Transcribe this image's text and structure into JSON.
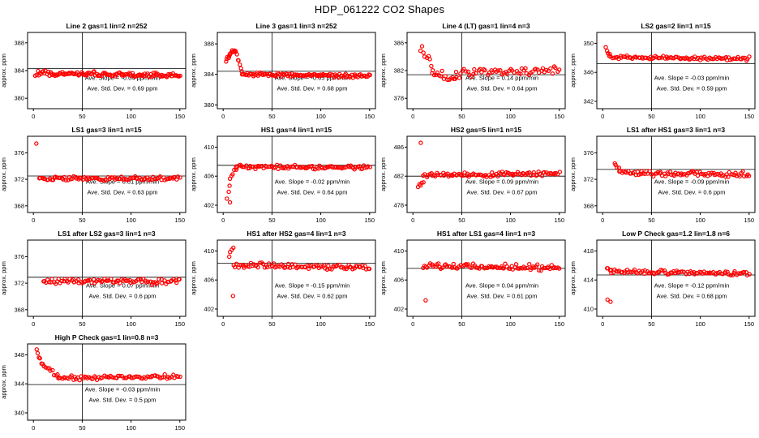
{
  "page": {
    "title": "HDP_061222  CO2 Shapes"
  },
  "colors": {
    "point": "#ff0000",
    "axis": "#000000",
    "text": "#000000",
    "background": "#ffffff"
  },
  "chart_data": [
    {
      "type": "scatter",
      "title": "Line 2 gas=1 lin=2 n=252",
      "ylabel": "approx. ppm",
      "xlim": [
        -6,
        156
      ],
      "xticks": [
        0,
        50,
        100,
        150
      ],
      "ylim": [
        378.5,
        389.5
      ],
      "yticks": [
        380,
        384,
        388
      ],
      "hline": 384.3,
      "vline": 50,
      "seed": 11,
      "segments": [
        {
          "x0": 2,
          "x1": 150,
          "n": 126,
          "y0": 383.6,
          "y1": 383.3,
          "noise": 0.45
        }
      ],
      "outliers": [],
      "slope_text": "Ave. Slope =  -0.04  ppm/min",
      "std_text": "Ave. Std. Dev. =  0.69  ppm"
    },
    {
      "type": "scatter",
      "title": "Line 3 gas=1 lin=3 n=252",
      "ylabel": "approx. ppm",
      "xlim": [
        -6,
        156
      ],
      "xticks": [
        0,
        50,
        100,
        150
      ],
      "ylim": [
        379.5,
        389.5
      ],
      "yticks": [
        380,
        384,
        388
      ],
      "hline": 384.4,
      "vline": 50,
      "seed": 22,
      "segments": [
        {
          "x0": 3,
          "x1": 7,
          "n": 6,
          "y0": 385.8,
          "y1": 386.6,
          "noise": 0.3
        },
        {
          "x0": 7,
          "x1": 13,
          "n": 8,
          "y0": 386.8,
          "y1": 387.2,
          "noise": 0.35
        },
        {
          "x0": 13,
          "x1": 19,
          "n": 7,
          "y0": 386.8,
          "y1": 384.6,
          "noise": 0.3
        },
        {
          "x0": 19,
          "x1": 150,
          "n": 108,
          "y0": 384.0,
          "y1": 383.8,
          "noise": 0.3
        }
      ],
      "outliers": [],
      "slope_text": "Ave. Slope =  -0.05  ppm/min",
      "std_text": "Ave. Std. Dev. =  0.68  ppm"
    },
    {
      "type": "scatter",
      "title": "Line 4 (LT) gas=1 lin=4 n=3",
      "ylabel": "approx. ppm",
      "xlim": [
        -6,
        156
      ],
      "xticks": [
        0,
        50,
        100,
        150
      ],
      "ylim": [
        376.5,
        387.5
      ],
      "yticks": [
        378,
        382,
        386
      ],
      "hline": 381.4,
      "vline": 50,
      "seed": 33,
      "segments": [
        {
          "x0": 8,
          "x1": 20,
          "n": 9,
          "y0": 385.2,
          "y1": 382.5,
          "noise": 0.9
        },
        {
          "x0": 20,
          "x1": 45,
          "n": 16,
          "y0": 381.6,
          "y1": 380.9,
          "noise": 0.8
        },
        {
          "x0": 45,
          "x1": 150,
          "n": 58,
          "y0": 381.6,
          "y1": 382.2,
          "noise": 0.85
        }
      ],
      "outliers": [],
      "slope_text": "Ave. Slope =  0.14  ppm/min",
      "std_text": "Ave. Std. Dev. =  0.64  ppm"
    },
    {
      "type": "scatter",
      "title": "LS2 gas=2 lin=1 n=15",
      "ylabel": "approx. ppm",
      "xlim": [
        -6,
        156
      ],
      "xticks": [
        0,
        50,
        100,
        150
      ],
      "ylim": [
        341,
        351.5
      ],
      "yticks": [
        342,
        346,
        350
      ],
      "hline": 347.2,
      "vline": 50,
      "seed": 44,
      "segments": [
        {
          "x0": 3,
          "x1": 7,
          "n": 4,
          "y0": 349.2,
          "y1": 348.6,
          "noise": 0.35
        },
        {
          "x0": 7,
          "x1": 150,
          "n": 92,
          "y0": 348.1,
          "y1": 347.9,
          "noise": 0.3
        }
      ],
      "outliers": [],
      "slope_text": "Ave. Slope =  -0.03  ppm/min",
      "std_text": "Ave. Std. Dev. =  0.59  ppm"
    },
    {
      "type": "scatter",
      "title": "LS1 gas=3 lin=1 n=15",
      "ylabel": "approx. ppm",
      "xlim": [
        -6,
        156
      ],
      "xticks": [
        0,
        50,
        100,
        150
      ],
      "ylim": [
        367,
        378.5
      ],
      "yticks": [
        368,
        372,
        376
      ],
      "hline": 372.5,
      "vline": 50,
      "seed": 55,
      "segments": [
        {
          "x0": 6,
          "x1": 150,
          "n": 95,
          "y0": 372.1,
          "y1": 372.2,
          "noise": 0.35
        }
      ],
      "outliers": [
        {
          "x": 3,
          "y": 377.4
        }
      ],
      "slope_text": "Ave. Slope =  0.01  ppm/min",
      "std_text": "Ave. Std. Dev. =  0.63  ppm"
    },
    {
      "type": "scatter",
      "title": "HS1 gas=4 lin=1 n=15",
      "ylabel": "approx. ppm",
      "xlim": [
        -6,
        156
      ],
      "xticks": [
        0,
        50,
        100,
        150
      ],
      "ylim": [
        401,
        411.5
      ],
      "yticks": [
        402,
        406,
        410
      ],
      "hline": 407.5,
      "vline": 50,
      "seed": 66,
      "segments": [
        {
          "x0": 4,
          "x1": 7,
          "n": 3,
          "y0": 403.2,
          "y1": 404.6,
          "noise": 0.4
        },
        {
          "x0": 7,
          "x1": 13,
          "n": 5,
          "y0": 405.6,
          "y1": 407.0,
          "noise": 0.4
        },
        {
          "x0": 13,
          "x1": 150,
          "n": 92,
          "y0": 407.3,
          "y1": 407.2,
          "noise": 0.35
        }
      ],
      "outliers": [
        {
          "x": 7,
          "y": 402.4
        }
      ],
      "slope_text": "Ave. Slope =  -0.02  ppm/min",
      "std_text": "Ave. Std. Dev. =  0.64  ppm"
    },
    {
      "type": "scatter",
      "title": "HS2 gas=5 lin=1 n=15",
      "ylabel": "approx. ppm",
      "xlim": [
        -6,
        156
      ],
      "xticks": [
        0,
        50,
        100,
        150
      ],
      "ylim": [
        477,
        487.5
      ],
      "yticks": [
        478,
        482,
        486
      ],
      "hline": 482.0,
      "vline": 50,
      "seed": 77,
      "segments": [
        {
          "x0": 5,
          "x1": 11,
          "n": 5,
          "y0": 480.3,
          "y1": 481.2,
          "noise": 0.5
        },
        {
          "x0": 11,
          "x1": 150,
          "n": 93,
          "y0": 482.1,
          "y1": 482.4,
          "noise": 0.4
        }
      ],
      "outliers": [
        {
          "x": 8,
          "y": 486.6
        }
      ],
      "slope_text": "Ave. Slope =  0.09  ppm/min",
      "std_text": "Ave. Std. Dev. =  0.67  ppm"
    },
    {
      "type": "scatter",
      "title": "LS1 after HS1 gas=3 lin=1 n=3",
      "ylabel": "approx. ppm",
      "xlim": [
        -6,
        156
      ],
      "xticks": [
        0,
        50,
        100,
        150
      ],
      "ylim": [
        367,
        378.5
      ],
      "yticks": [
        368,
        372,
        376
      ],
      "hline": 373.5,
      "vline": 50,
      "seed": 88,
      "segments": [
        {
          "x0": 12,
          "x1": 17,
          "n": 4,
          "y0": 374.6,
          "y1": 373.6,
          "noise": 0.4
        },
        {
          "x0": 17,
          "x1": 150,
          "n": 88,
          "y0": 373.0,
          "y1": 372.7,
          "noise": 0.5
        }
      ],
      "outliers": [],
      "slope_text": "Ave. Slope =  -0.09  ppm/min",
      "std_text": "Ave. Std. Dev. =  0.6  ppm"
    },
    {
      "type": "scatter",
      "title": "LS1 after LS2 gas=3 lin=1 n=3",
      "ylabel": "approx. ppm",
      "xlim": [
        -6,
        156
      ],
      "xticks": [
        0,
        50,
        100,
        150
      ],
      "ylim": [
        367,
        378.5
      ],
      "yticks": [
        368,
        372,
        376
      ],
      "hline": 372.9,
      "vline": 50,
      "seed": 99,
      "segments": [
        {
          "x0": 10,
          "x1": 150,
          "n": 88,
          "y0": 372.3,
          "y1": 372.2,
          "noise": 0.5
        }
      ],
      "outliers": [],
      "slope_text": "Ave. Slope =  0.07  ppm/min",
      "std_text": "Ave. Std. Dev. =  0.6  ppm"
    },
    {
      "type": "scatter",
      "title": "HS1 after HS2 gas=4 lin=1 n=3",
      "ylabel": "approx. ppm",
      "xlim": [
        -6,
        156
      ],
      "xticks": [
        0,
        50,
        100,
        150
      ],
      "ylim": [
        401,
        411.5
      ],
      "yticks": [
        402,
        406,
        410
      ],
      "hline": 408.3,
      "vline": 50,
      "seed": 101,
      "segments": [
        {
          "x0": 6,
          "x1": 10,
          "n": 4,
          "y0": 409.6,
          "y1": 410.6,
          "noise": 0.5
        },
        {
          "x0": 11,
          "x1": 150,
          "n": 90,
          "y0": 408.1,
          "y1": 407.7,
          "noise": 0.45
        }
      ],
      "outliers": [
        {
          "x": 10,
          "y": 403.8
        }
      ],
      "slope_text": "Ave. Slope =  -0.15  ppm/min",
      "std_text": "Ave. Std. Dev. =  0.62  ppm"
    },
    {
      "type": "scatter",
      "title": "HS1 after LS1 gas=4 lin=1 n=3",
      "ylabel": "approx. ppm",
      "xlim": [
        -6,
        156
      ],
      "xticks": [
        0,
        50,
        100,
        150
      ],
      "ylim": [
        401,
        411.5
      ],
      "yticks": [
        402,
        406,
        410
      ],
      "hline": 407.6,
      "vline": 50,
      "seed": 111,
      "segments": [
        {
          "x0": 10,
          "x1": 150,
          "n": 90,
          "y0": 407.9,
          "y1": 407.7,
          "noise": 0.5
        }
      ],
      "outliers": [
        {
          "x": 13,
          "y": 403.2
        }
      ],
      "slope_text": "Ave. Slope =  0.04  ppm/min",
      "std_text": "Ave. Std. Dev. =  0.61  ppm"
    },
    {
      "type": "scatter",
      "title": "Low P Check gas=1.2 lin=1.8 n=6",
      "ylabel": "approx. ppm",
      "xlim": [
        -6,
        156
      ],
      "xticks": [
        0,
        50,
        100,
        150
      ],
      "ylim": [
        409,
        419.5
      ],
      "yticks": [
        410,
        414,
        418
      ],
      "hline": 414.7,
      "vline": 50,
      "seed": 121,
      "segments": [
        {
          "x0": 4,
          "x1": 9,
          "n": 4,
          "y0": 415.6,
          "y1": 415.4,
          "noise": 0.3
        },
        {
          "x0": 9,
          "x1": 150,
          "n": 90,
          "y0": 415.2,
          "y1": 414.9,
          "noise": 0.35
        }
      ],
      "outliers": [
        {
          "x": 5,
          "y": 411.3
        },
        {
          "x": 8,
          "y": 411.0
        }
      ],
      "slope_text": "Ave. Slope =  -0.12  ppm/min",
      "std_text": "Ave. Std. Dev. =  0.68  ppm"
    },
    {
      "type": "scatter",
      "title": "High P Check gas=1 lin=0.8 n=3",
      "ylabel": "approx. ppm",
      "xlim": [
        -6,
        156
      ],
      "xticks": [
        0,
        50,
        100,
        150
      ],
      "ylim": [
        339,
        349.5
      ],
      "yticks": [
        340,
        344,
        348
      ],
      "hline": 343.9,
      "vline": 50,
      "seed": 131,
      "segments": [
        {
          "x0": 3,
          "x1": 6,
          "n": 3,
          "y0": 348.6,
          "y1": 347.6,
          "noise": 0.4
        },
        {
          "x0": 6,
          "x1": 26,
          "n": 13,
          "y0": 347.2,
          "y1": 344.9,
          "noise": 0.45
        },
        {
          "x0": 26,
          "x1": 150,
          "n": 76,
          "y0": 344.8,
          "y1": 345.0,
          "noise": 0.4
        }
      ],
      "outliers": [],
      "slope_text": "Ave. Slope =  -0.03  ppm/min",
      "std_text": "Ave. Std. Dev. =  0.5  ppm"
    }
  ]
}
